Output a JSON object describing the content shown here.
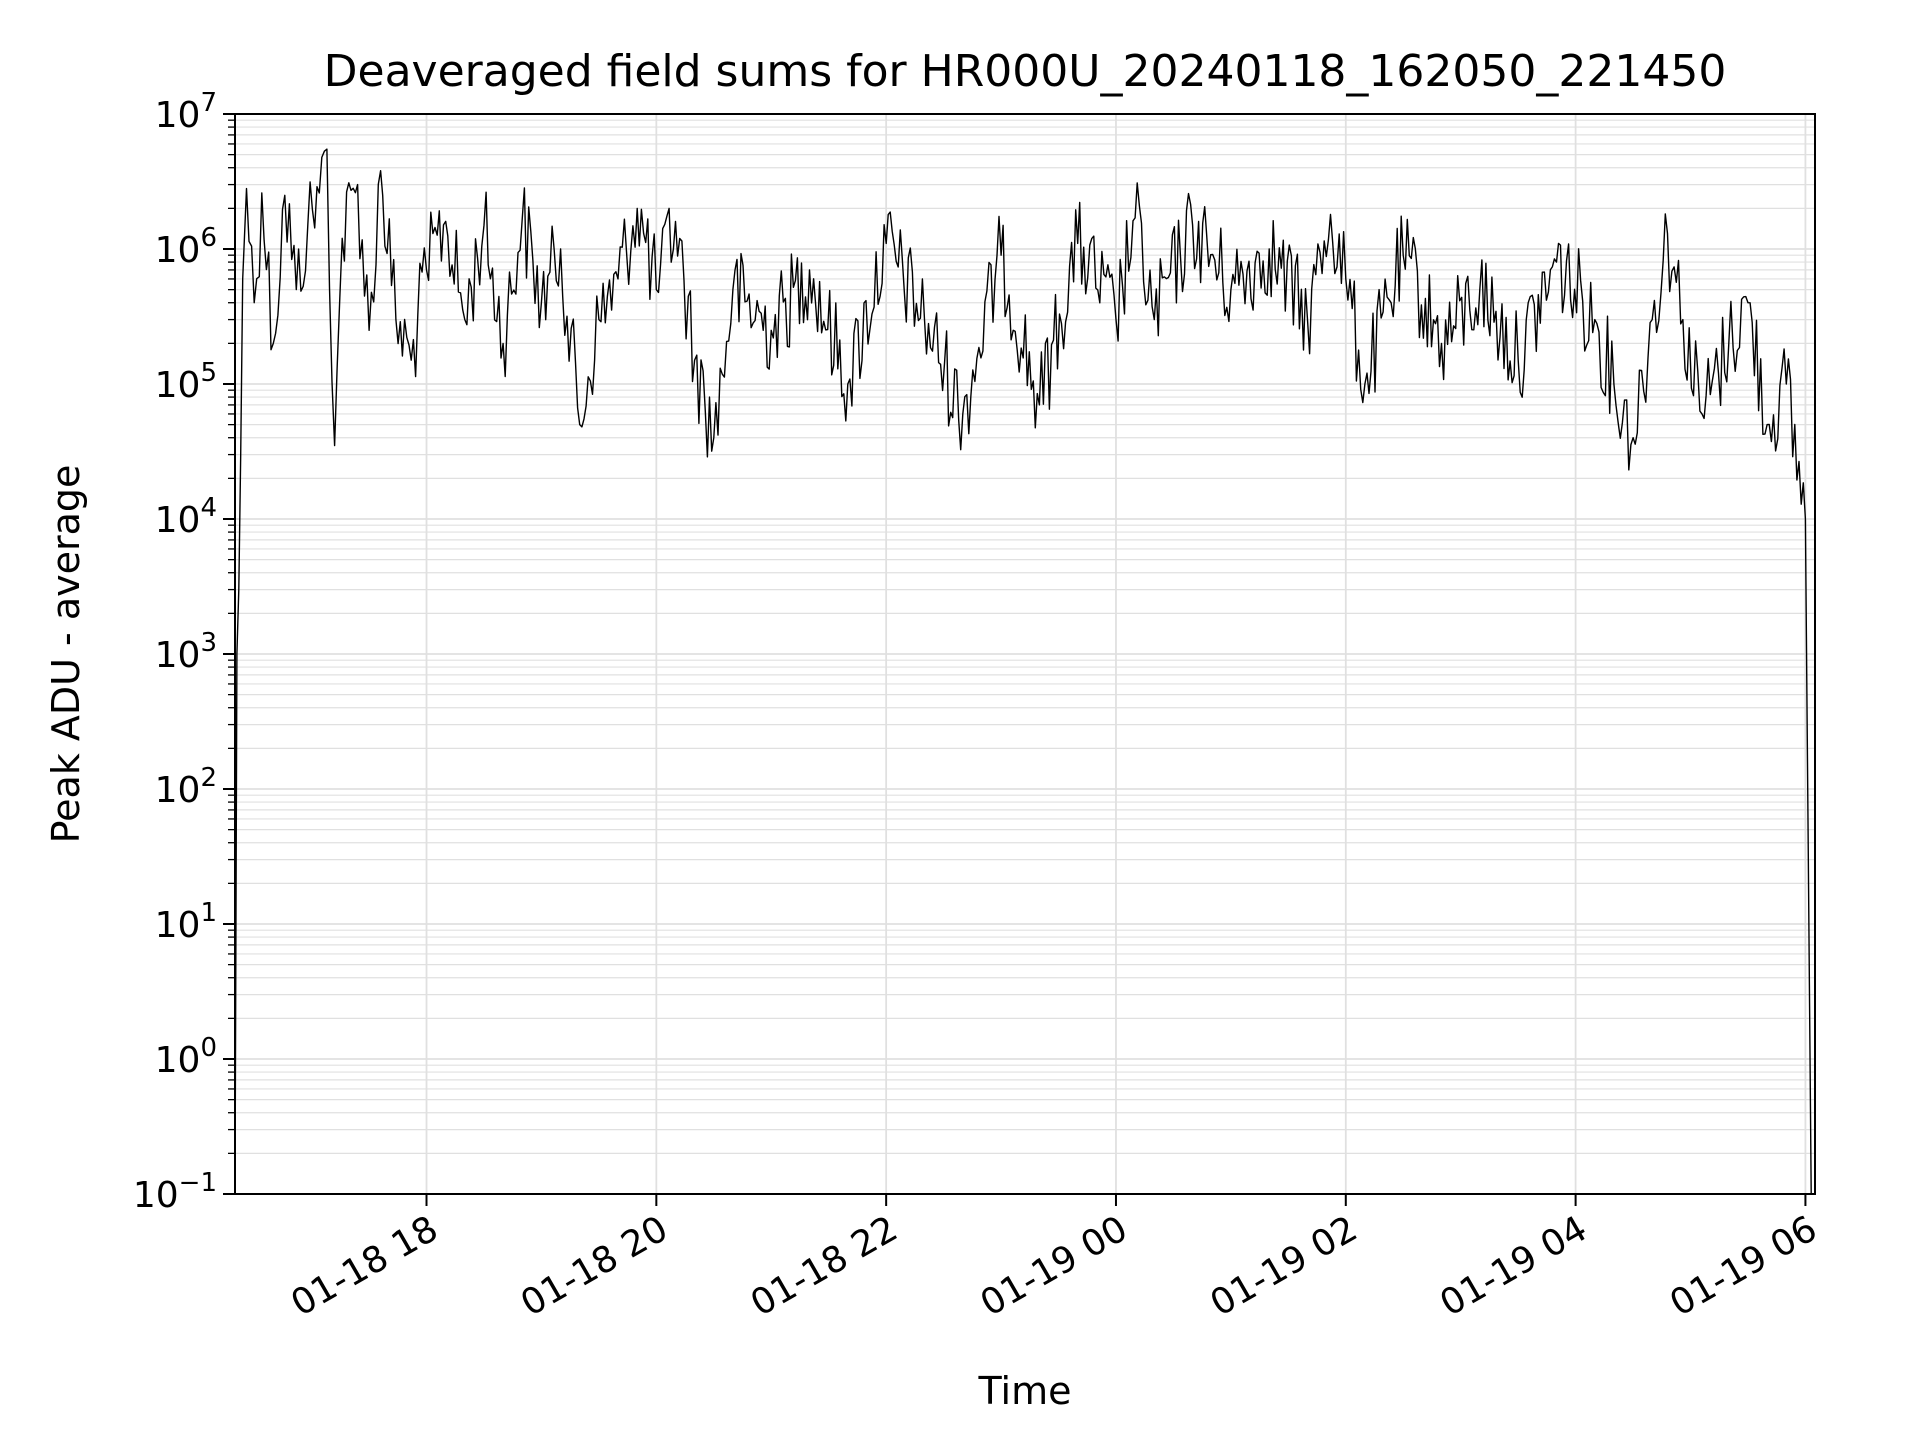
{
  "chart_data": {
    "type": "line",
    "title": "Deaveraged field sums for HR000U_20240118_162050_221450",
    "xlabel": "Time",
    "ylabel": "Peak ADU - average",
    "yscale": "log",
    "ylim": [
      0.1,
      10000000
    ],
    "xlim": [
      "2024-01-18 16:20",
      "2024-01-19 06:05"
    ],
    "grid": true,
    "line_color": "#000000",
    "grid_color": "#e0e0e0",
    "x_ticks": [
      {
        "label": "01-18 18",
        "value": "2024-01-18 18:00"
      },
      {
        "label": "01-18 20",
        "value": "2024-01-18 20:00"
      },
      {
        "label": "01-18 22",
        "value": "2024-01-18 22:00"
      },
      {
        "label": "01-19 00",
        "value": "2024-01-19 00:00"
      },
      {
        "label": "01-19 02",
        "value": "2024-01-19 02:00"
      },
      {
        "label": "01-19 04",
        "value": "2024-01-19 04:00"
      },
      {
        "label": "01-19 06",
        "value": "2024-01-19 06:00"
      }
    ],
    "y_ticks": [
      {
        "base": "10",
        "exp": "−1",
        "value": 0.1
      },
      {
        "base": "10",
        "exp": "0",
        "value": 1
      },
      {
        "base": "10",
        "exp": "1",
        "value": 10
      },
      {
        "base": "10",
        "exp": "2",
        "value": 100
      },
      {
        "base": "10",
        "exp": "3",
        "value": 1000
      },
      {
        "base": "10",
        "exp": "4",
        "value": 10000
      },
      {
        "base": "10",
        "exp": "5",
        "value": 100000
      },
      {
        "base": "10",
        "exp": "6",
        "value": 1000000
      },
      {
        "base": "10",
        "exp": "7",
        "value": 10000000
      }
    ],
    "series": [
      {
        "values": [
          [
            "2024-01-18 16:20",
            0.1
          ],
          [
            "2024-01-18 16:21",
            1000
          ],
          [
            "2024-01-18 16:22",
            3000
          ],
          [
            "2024-01-18 16:23",
            30000
          ],
          [
            "2024-01-18 16:24",
            600000
          ],
          [
            "2024-01-18 16:26",
            2800000
          ],
          [
            "2024-01-18 16:30",
            400000
          ],
          [
            "2024-01-18 16:34",
            2600000
          ],
          [
            "2024-01-18 16:40",
            200000
          ],
          [
            "2024-01-18 16:46",
            2500000
          ],
          [
            "2024-01-18 16:52",
            500000
          ],
          [
            "2024-01-18 16:58",
            1500000
          ],
          [
            "2024-01-18 17:04",
            2600000
          ],
          [
            "2024-01-18 17:08",
            5500000
          ],
          [
            "2024-01-18 17:12",
            35000
          ],
          [
            "2024-01-18 17:16",
            1200000
          ],
          [
            "2024-01-18 17:24",
            3000000
          ],
          [
            "2024-01-18 17:30",
            250000
          ],
          [
            "2024-01-18 17:36",
            3800000
          ],
          [
            "2024-01-18 17:44",
            300000
          ],
          [
            "2024-01-18 17:52",
            150000
          ],
          [
            "2024-01-18 18:00",
            700000
          ],
          [
            "2024-01-18 18:10",
            1600000
          ],
          [
            "2024-01-18 18:20",
            300000
          ],
          [
            "2024-01-18 18:30",
            1500000
          ],
          [
            "2024-01-18 18:40",
            200000
          ],
          [
            "2024-01-18 18:50",
            1700000
          ],
          [
            "2024-01-18 19:00",
            400000
          ],
          [
            "2024-01-18 19:10",
            1000000
          ],
          [
            "2024-01-18 19:20",
            50000
          ],
          [
            "2024-01-18 19:30",
            300000
          ],
          [
            "2024-01-18 19:40",
            600000
          ],
          [
            "2024-01-18 19:50",
            2000000
          ],
          [
            "2024-01-18 20:00",
            500000
          ],
          [
            "2024-01-18 20:10",
            1600000
          ],
          [
            "2024-01-18 20:20",
            150000
          ],
          [
            "2024-01-18 20:30",
            40000
          ],
          [
            "2024-01-18 20:40",
            500000
          ],
          [
            "2024-01-18 21:00",
            250000
          ],
          [
            "2024-01-18 21:20",
            700000
          ],
          [
            "2024-01-18 21:40",
            100000
          ],
          [
            "2024-01-18 22:00",
            1100000
          ],
          [
            "2024-01-18 22:20",
            300000
          ],
          [
            "2024-01-18 22:40",
            60000
          ],
          [
            "2024-01-18 23:00",
            900000
          ],
          [
            "2024-01-18 23:20",
            70000
          ],
          [
            "2024-01-18 23:40",
            1100000
          ],
          [
            "2024-01-19 00:00",
            300000
          ],
          [
            "2024-01-19 00:10",
            1700000
          ],
          [
            "2024-01-19 00:20",
            300000
          ],
          [
            "2024-01-19 00:40",
            1500000
          ],
          [
            "2024-01-19 01:00",
            500000
          ],
          [
            "2024-01-19 01:20",
            1000000
          ],
          [
            "2024-01-19 01:40",
            300000
          ],
          [
            "2024-01-19 01:52",
            1800000
          ],
          [
            "2024-01-19 02:00",
            600000
          ],
          [
            "2024-01-19 02:10",
            100000
          ],
          [
            "2024-01-19 02:30",
            900000
          ],
          [
            "2024-01-19 02:50",
            200000
          ],
          [
            "2024-01-19 03:10",
            500000
          ],
          [
            "2024-01-19 03:30",
            150000
          ],
          [
            "2024-01-19 03:50",
            800000
          ],
          [
            "2024-01-19 04:10",
            300000
          ],
          [
            "2024-01-19 04:20",
            100000
          ],
          [
            "2024-01-19 04:30",
            40000
          ],
          [
            "2024-01-19 04:40",
            300000
          ],
          [
            "2024-01-19 04:48",
            1300000
          ],
          [
            "2024-01-19 04:56",
            300000
          ],
          [
            "2024-01-19 05:06",
            60000
          ],
          [
            "2024-01-19 05:20",
            200000
          ],
          [
            "2024-01-19 05:30",
            400000
          ],
          [
            "2024-01-19 05:40",
            50000
          ],
          [
            "2024-01-19 05:50",
            100000
          ],
          [
            "2024-01-19 06:00",
            10000
          ],
          [
            "2024-01-19 06:03",
            0.1
          ]
        ]
      }
    ]
  }
}
